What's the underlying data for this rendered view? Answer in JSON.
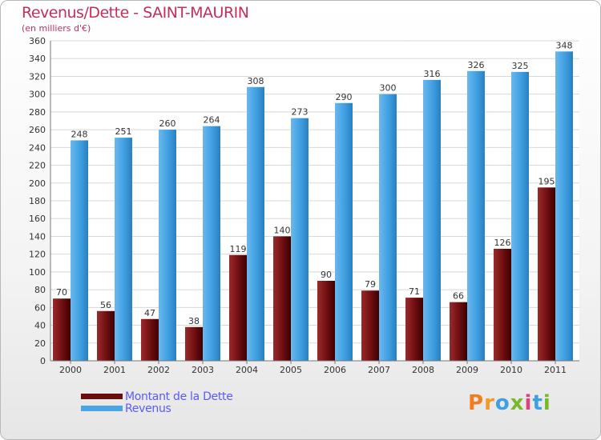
{
  "header": {
    "title": "Revenus/Dette - SAINT-MAURIN",
    "subtitle": "(en milliers d'€)"
  },
  "chart_data": {
    "type": "bar",
    "categories": [
      "2000",
      "2001",
      "2002",
      "2003",
      "2004",
      "2005",
      "2006",
      "2007",
      "2008",
      "2009",
      "2010",
      "2011"
    ],
    "series": [
      {
        "name": "Montant de la Dette",
        "values": [
          70,
          56,
          47,
          38,
          119,
          140,
          90,
          79,
          71,
          66,
          126,
          195
        ],
        "color": "#7a1416"
      },
      {
        "name": "Revenus",
        "values": [
          248,
          251,
          260,
          264,
          308,
          273,
          290,
          300,
          316,
          326,
          325,
          348
        ],
        "color": "#3f9fe0"
      }
    ],
    "ylim": [
      0,
      360
    ],
    "yticks": [
      0,
      20,
      40,
      60,
      80,
      100,
      120,
      140,
      160,
      180,
      200,
      220,
      240,
      260,
      280,
      300,
      320,
      340,
      360
    ],
    "grid": true,
    "legend": "bottom-left"
  },
  "legend": {
    "items": [
      {
        "label": "Montant de la Dette",
        "color": "#6b0d0f"
      },
      {
        "label": "Revenus",
        "color": "#4aa5e6"
      }
    ]
  },
  "logo": {
    "text": "Proxiti"
  }
}
